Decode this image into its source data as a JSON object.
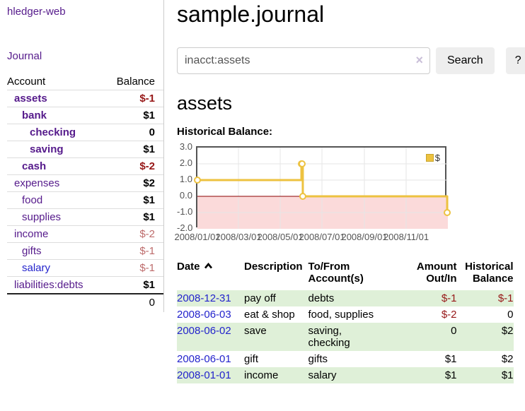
{
  "colors": {
    "link-purple": "#551a8b",
    "link-blue": "#2323cc",
    "neg-strong": "#961616",
    "neg-muted": "#bd6b6b",
    "row-green": "#dff0d8",
    "chart-gold": "#edc240",
    "chart-neg-region": "#fbdada",
    "chart-zero-line": "#8b0000",
    "axis-text": "#545454",
    "border-light": "#dddddd",
    "button-bg": "#eeeeee"
  },
  "sidebar": {
    "app_title": "hledger-web",
    "journal_link": "Journal",
    "accounts": {
      "header_account": "Account",
      "header_balance": "Balance",
      "rows": [
        {
          "name": "assets",
          "balance": "$-1",
          "depth": 1,
          "bold": true,
          "neg": "strong"
        },
        {
          "name": "bank",
          "balance": "$1",
          "depth": 2,
          "bold": true
        },
        {
          "name": "checking",
          "balance": "0",
          "depth": 3,
          "bold": true
        },
        {
          "name": "saving",
          "balance": "$1",
          "depth": 3,
          "bold": true
        },
        {
          "name": "cash",
          "balance": "$-2",
          "depth": 2,
          "bold": true,
          "neg": "strong"
        },
        {
          "name": "expenses",
          "balance": "$2",
          "depth": 1
        },
        {
          "name": "food",
          "balance": "$1",
          "depth": 2
        },
        {
          "name": "supplies",
          "balance": "$1",
          "depth": 2
        },
        {
          "name": "income",
          "balance": "$-2",
          "depth": 1,
          "neg": "muted"
        },
        {
          "name": "gifts",
          "balance": "$-1",
          "depth": 2,
          "neg": "muted"
        },
        {
          "name": "salary",
          "balance": "$-1",
          "depth": 2,
          "neg": "muted",
          "unvisited": true
        },
        {
          "name": "liabilities:debts",
          "balance": "$1",
          "depth": 1
        }
      ],
      "total": "0"
    }
  },
  "main": {
    "page_title": "sample.journal",
    "search": {
      "value": "inacct:assets",
      "clear_icon": "×",
      "search_button": "Search",
      "help_button": "?"
    },
    "account_heading": "assets",
    "section_heading": "Historical Balance:"
  },
  "chart_data": {
    "type": "line",
    "step": true,
    "title": "Historical Balance:",
    "legend": [
      {
        "label": "$",
        "color": "#edc240"
      }
    ],
    "legend_position": "top-right",
    "grid": true,
    "ylim": [
      -2,
      3
    ],
    "xlim": [
      "2008-01-01",
      "2009-01-01"
    ],
    "y_ticks": [
      3,
      2,
      1,
      0,
      -1,
      -2
    ],
    "y_tick_labels": [
      "3.0",
      "2.0",
      "1.0",
      "0.0",
      "-1.0",
      "-2.0"
    ],
    "x_tick_labels": [
      "2008/01/01",
      "2008/03/01",
      "2008/05/01",
      "2008/07/01",
      "2008/09/01",
      "2008/11/01"
    ],
    "series": [
      {
        "name": "$",
        "color": "#edc240",
        "points": [
          [
            "2008-01-01",
            1
          ],
          [
            "2008-06-01",
            2
          ],
          [
            "2008-06-02",
            2
          ],
          [
            "2008-06-03",
            0
          ],
          [
            "2008-12-31",
            -1
          ]
        ]
      }
    ],
    "negative_region_shaded": true,
    "zero_line_color": "#8b0000"
  },
  "register": {
    "headers": {
      "date": "Date",
      "description": "Description",
      "accounts": "To/From Account(s)",
      "amount": "Amount Out/In",
      "balance": "Historical Balance"
    },
    "sort_icon": "chevron-up",
    "rows": [
      {
        "date": "2008-12-31",
        "description": "pay off",
        "accounts": "debts",
        "amount": "$-1",
        "balance": "$-1"
      },
      {
        "date": "2008-06-03",
        "description": "eat & shop",
        "accounts": "food, supplies",
        "amount": "$-2",
        "balance": "0"
      },
      {
        "date": "2008-06-02",
        "description": "save",
        "accounts": "saving,\nchecking",
        "amount": "0",
        "balance": "$2"
      },
      {
        "date": "2008-06-01",
        "description": "gift",
        "accounts": "gifts",
        "amount": "$1",
        "balance": "$2"
      },
      {
        "date": "2008-01-01",
        "description": "income",
        "accounts": "salary",
        "amount": "$1",
        "balance": "$1"
      }
    ]
  }
}
